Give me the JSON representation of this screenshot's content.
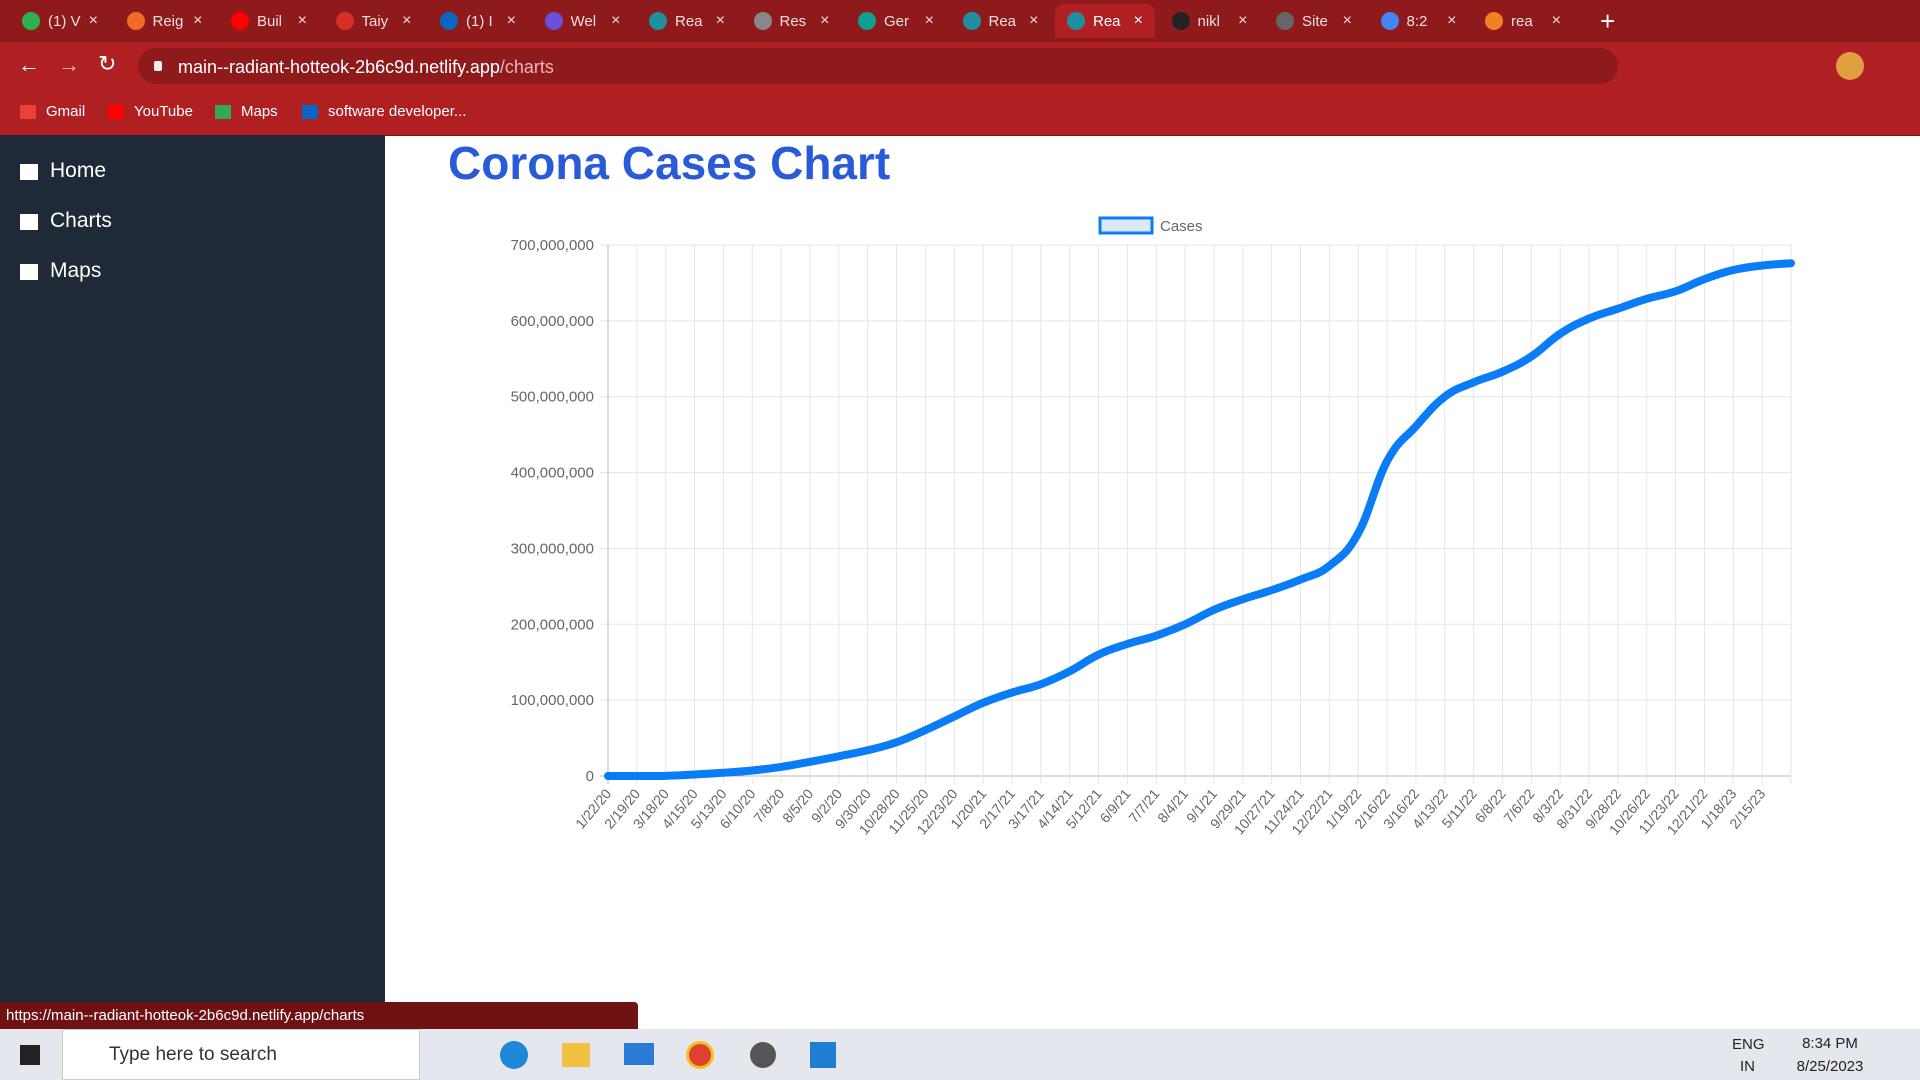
{
  "browser": {
    "tabs": [
      "(1) V",
      "Reig",
      "Buil",
      "Taiy",
      "(1) I",
      "Wel",
      "Rea",
      "Res",
      "Ger",
      "Rea",
      "Rea",
      "nikl",
      "Site",
      "8:2",
      "rea"
    ],
    "url_host": "main--radiant-hotteok-2b6c9d.netlify.app",
    "url_path": "/charts",
    "bookmarks": [
      "Gmail",
      "YouTube",
      "Maps",
      "software developer..."
    ],
    "status_url": "https://main--radiant-hotteok-2b6c9d.netlify.app/charts"
  },
  "sidebar": {
    "items": [
      "Home",
      "Charts",
      "Maps"
    ]
  },
  "chart_data": {
    "type": "line",
    "title": "Corona Cases Chart",
    "categories": [
      "1/22/20",
      "2/19/20",
      "3/18/20",
      "4/15/20",
      "5/13/20",
      "6/10/20",
      "7/8/20",
      "8/5/20",
      "9/2/20",
      "9/30/20",
      "10/28/20",
      "11/25/20",
      "12/23/20",
      "1/20/21",
      "2/17/21",
      "3/17/21",
      "4/14/21",
      "5/12/21",
      "6/9/21",
      "7/7/21",
      "8/4/21",
      "9/1/21",
      "9/29/21",
      "10/27/21",
      "11/24/21",
      "12/22/21",
      "1/19/22",
      "2/16/22",
      "3/16/22",
      "4/13/22",
      "5/11/22",
      "6/8/22",
      "7/6/22",
      "8/3/22",
      "8/31/22",
      "9/28/22",
      "10/26/22",
      "11/23/22",
      "12/21/22",
      "1/18/23",
      "2/15/23",
      null
    ],
    "series": [
      {
        "name": "Cases",
        "color": "#0a7cf5",
        "values": [
          600,
          75000,
          220000,
          2000000,
          4300000,
          7300000,
          12000000,
          18700000,
          26000000,
          33900000,
          44500000,
          60500000,
          78500000,
          96500000,
          110000000,
          121000000,
          138000000,
          160000000,
          174000000,
          185000000,
          200000000,
          219000000,
          233000000,
          245000000,
          259000000,
          277000000,
          320000000,
          415000000,
          461000000,
          500000000,
          519000000,
          533000000,
          553000000,
          583000000,
          603000000,
          616000000,
          629000000,
          639000000,
          655000000,
          667000000,
          673000000,
          676000000
        ]
      }
    ],
    "ylim": [
      0,
      700000000
    ],
    "yticks": [
      0,
      {
        "value": 100000000,
        "label": "100,000,000"
      },
      {
        "value": 200000000,
        "label": "200,000,000"
      },
      {
        "value": 300000000,
        "label": "300,000,000"
      },
      {
        "value": 400000000,
        "label": "400,000,000"
      },
      {
        "value": 500000000,
        "label": "500,000,000"
      },
      {
        "value": 600000000,
        "label": "600,000,000"
      },
      {
        "value": 700000000,
        "label": "700,000,000"
      }
    ],
    "grid": true,
    "legend": "top"
  },
  "taskbar": {
    "search": "Type here to search",
    "lang": "ENG",
    "region": "IN",
    "time": "8:34 PM",
    "date": "8/25/2023"
  }
}
